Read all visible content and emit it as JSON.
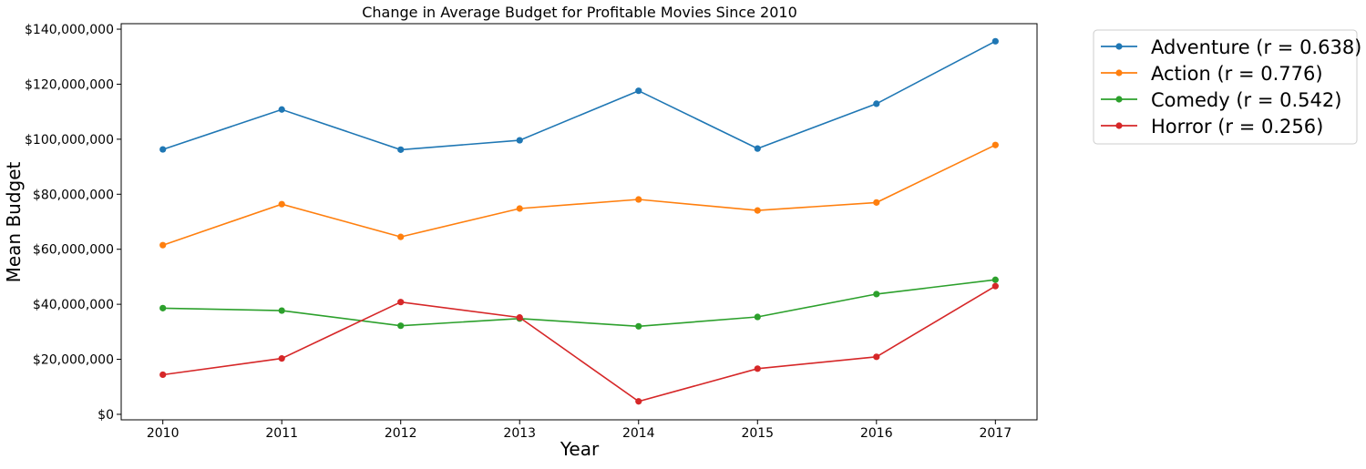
{
  "chart_data": {
    "type": "line",
    "title": "Change in Average Budget for Profitable Movies Since 2010",
    "xlabel": "Year",
    "ylabel": "Mean Budget",
    "x": [
      2010,
      2011,
      2012,
      2013,
      2014,
      2015,
      2016,
      2017
    ],
    "xlim": [
      2009.65,
      2017.35
    ],
    "ylim": [
      -2000000,
      142000000
    ],
    "yticks": [
      0,
      20000000,
      40000000,
      60000000,
      80000000,
      100000000,
      120000000,
      140000000
    ],
    "ytick_labels": [
      "$0",
      "$20,000,000",
      "$40,000,000",
      "$60,000,000",
      "$80,000,000",
      "$100,000,000",
      "$120,000,000",
      "$140,000,000"
    ],
    "xtick_labels": [
      "2010",
      "2011",
      "2012",
      "2013",
      "2014",
      "2015",
      "2016",
      "2017"
    ],
    "grid": false,
    "legend_placement": "outside-top-right",
    "series": [
      {
        "name": "Adventure (r = 0.638)",
        "color": "#1f77b4",
        "values": [
          96300000,
          110800000,
          96200000,
          99600000,
          117600000,
          96600000,
          112900000,
          135600000
        ]
      },
      {
        "name": "Action (r = 0.776)",
        "color": "#ff7f0e",
        "values": [
          61500000,
          76400000,
          64500000,
          74800000,
          78100000,
          74100000,
          77000000,
          97900000
        ]
      },
      {
        "name": "Comedy (r = 0.542)",
        "color": "#2ca02c",
        "values": [
          38600000,
          37700000,
          32200000,
          34800000,
          32000000,
          35400000,
          43700000,
          48900000
        ]
      },
      {
        "name": "Horror (r = 0.256)",
        "color": "#d62728",
        "values": [
          14400000,
          20300000,
          40800000,
          35200000,
          4700000,
          16600000,
          20900000,
          46600000
        ]
      }
    ]
  }
}
